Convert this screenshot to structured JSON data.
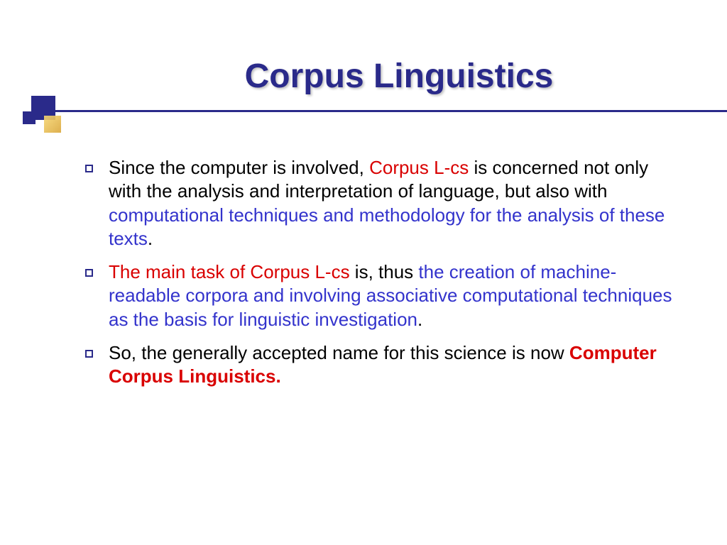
{
  "slide": {
    "title": "Corpus Linguistics",
    "title_color": "#2a2a8a",
    "underline_color": "#2a2a8a",
    "bullet_border_color": "#2a2a8a",
    "background_color": "#ffffff",
    "body_fontsize": 26,
    "title_fontsize": 48,
    "bullets": [
      {
        "segments": [
          {
            "text": "Since the computer is involved, ",
            "cls": ""
          },
          {
            "text": "Corpus L-cs",
            "cls": "red"
          },
          {
            "text": " is concerned not only with the analysis and interpretation of language, but also with ",
            "cls": ""
          },
          {
            "text": "computational techniques and methodology for the analysis of these texts",
            "cls": "blue"
          },
          {
            "text": ".",
            "cls": ""
          }
        ]
      },
      {
        "segments": [
          {
            "text": "The main task of Corpus L-cs",
            "cls": "red"
          },
          {
            "text": " is, thus ",
            "cls": ""
          },
          {
            "text": "the creation of machine-readable corpora and involving associative computational techniques as the basis for linguistic investigation",
            "cls": "blue"
          },
          {
            "text": ".",
            "cls": ""
          }
        ]
      },
      {
        "segments": [
          {
            "text": "So, the generally accepted name for this science is now ",
            "cls": ""
          },
          {
            "text": "Computer Corpus Linguistics.",
            "cls": "red-bold"
          }
        ]
      }
    ]
  }
}
